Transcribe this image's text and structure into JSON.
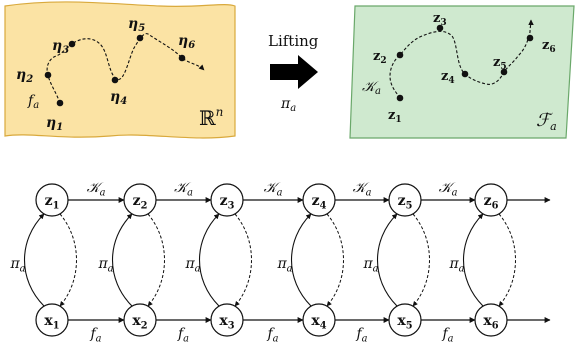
{
  "top": {
    "left_panel": {
      "space_label": "ℝ",
      "space_sup": "n",
      "points": [
        {
          "id": "eta1",
          "base": "η",
          "sub": "1"
        },
        {
          "id": "eta2",
          "base": "η",
          "sub": "2"
        },
        {
          "id": "eta3",
          "base": "η",
          "sub": "3"
        },
        {
          "id": "eta4",
          "base": "η",
          "sub": "4"
        },
        {
          "id": "eta5",
          "base": "η",
          "sub": "5"
        },
        {
          "id": "eta6",
          "base": "η",
          "sub": "6"
        }
      ],
      "map_label": {
        "base": "f",
        "sub": "a"
      },
      "colors": {
        "fill": "#fbe3a4",
        "stroke": "#d9a93c"
      }
    },
    "arrow": {
      "title": "Lifting",
      "map": {
        "base": "π",
        "sub": "a"
      }
    },
    "right_panel": {
      "space_label": {
        "base": "ℱ",
        "sub": "a"
      },
      "points": [
        {
          "id": "z1",
          "base": "z",
          "sub": "1"
        },
        {
          "id": "z2",
          "base": "z",
          "sub": "2"
        },
        {
          "id": "z3",
          "base": "z",
          "sub": "3"
        },
        {
          "id": "z4",
          "base": "z",
          "sub": "4"
        },
        {
          "id": "z5",
          "base": "z",
          "sub": "5"
        },
        {
          "id": "z6",
          "base": "z",
          "sub": "6"
        }
      ],
      "map_label": {
        "base": "𝒦",
        "sub": "a"
      },
      "colors": {
        "fill": "#cfe9cf",
        "stroke": "#6aa86a"
      }
    }
  },
  "bottom": {
    "z_nodes": [
      {
        "base": "z",
        "sub": "1"
      },
      {
        "base": "z",
        "sub": "2"
      },
      {
        "base": "z",
        "sub": "3"
      },
      {
        "base": "z",
        "sub": "4"
      },
      {
        "base": "z",
        "sub": "5"
      },
      {
        "base": "z",
        "sub": "6"
      }
    ],
    "x_nodes": [
      {
        "base": "x",
        "sub": "1"
      },
      {
        "base": "x",
        "sub": "2"
      },
      {
        "base": "x",
        "sub": "3"
      },
      {
        "base": "x",
        "sub": "4"
      },
      {
        "base": "x",
        "sub": "5"
      },
      {
        "base": "x",
        "sub": "6"
      }
    ],
    "koopman_label": {
      "base": "𝒦",
      "sub": "a"
    },
    "dyn_label": {
      "base": "f",
      "sub": "a"
    },
    "lift_label": {
      "base": "π",
      "sub": "a"
    }
  }
}
